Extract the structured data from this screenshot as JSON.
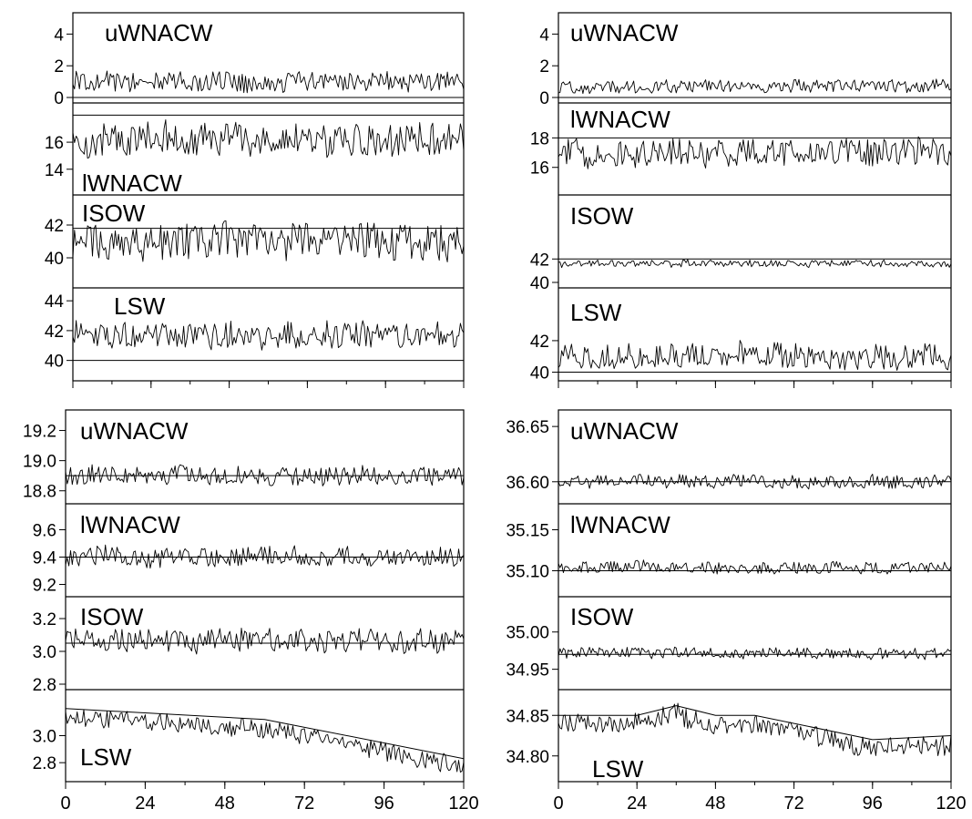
{
  "chart_data": [
    {
      "type": "line",
      "xlim": [
        0,
        120
      ],
      "xticks": [
        "0",
        "24",
        "48",
        "72",
        "96",
        "120"
      ],
      "panels": [
        {
          "label": "uWNACW",
          "yticks": [
            "0",
            "2",
            "4"
          ],
          "ylim": [
            0,
            5
          ],
          "ref": 0,
          "series_mean": 1.0,
          "series_amplitude": 0.6,
          "trend": null
        },
        {
          "label": "lWNACW",
          "yticks": [
            "14",
            "16"
          ],
          "ylim": [
            12.5,
            18.5
          ],
          "ref": 18,
          "series_mean": 16.2,
          "series_amplitude": 1.2,
          "trend": null
        },
        {
          "label": "ISOW",
          "yticks": [
            "40",
            "42"
          ],
          "ylim": [
            38.5,
            43.5
          ],
          "ref": 41.8,
          "series_mean": 41.0,
          "series_amplitude": 1.1,
          "trend": null
        },
        {
          "label": "LSW",
          "yticks": [
            "40",
            "42",
            "44"
          ],
          "ylim": [
            39,
            44.5
          ],
          "ref": 40,
          "series_mean": 41.7,
          "series_amplitude": 0.9,
          "trend": null
        }
      ]
    },
    {
      "type": "line",
      "xlim": [
        0,
        120
      ],
      "xticks": [
        "0",
        "24",
        "48",
        "72",
        "96",
        "120"
      ],
      "panels": [
        {
          "label": "uWNACW",
          "yticks": [
            "0",
            "2",
            "4"
          ],
          "ylim": [
            0,
            5
          ],
          "ref": 0,
          "series_mean": 0.7,
          "series_amplitude": 0.4,
          "trend": null
        },
        {
          "label": "lWNACW",
          "yticks": [
            "16",
            "18"
          ],
          "ylim": [
            14.5,
            20
          ],
          "ref": 18,
          "series_mean": 17.0,
          "series_amplitude": 0.9,
          "trend": null
        },
        {
          "label": "ISOW",
          "yticks": [
            "40",
            "42"
          ],
          "ylim": [
            40,
            47
          ],
          "ref": 42,
          "series_mean": 41.6,
          "series_amplitude": 0.3,
          "trend": null
        },
        {
          "label": "LSW",
          "yticks": [
            "40",
            "42"
          ],
          "ylim": [
            39.8,
            45
          ],
          "ref": 40,
          "series_mean": 41.0,
          "series_amplitude": 0.8,
          "trend": null
        }
      ]
    },
    {
      "type": "line",
      "xlim": [
        0,
        120
      ],
      "xticks": [
        "0",
        "24",
        "48",
        "72",
        "96",
        "120"
      ],
      "panels": [
        {
          "label": "uWNACW",
          "yticks": [
            "18.8",
            "19.0",
            "19.2"
          ],
          "ylim": [
            18.75,
            19.3
          ],
          "ref": 18.9,
          "series_mean": 18.9,
          "series_amplitude": 0.06,
          "trend": null
        },
        {
          "label": "lWNACW",
          "yticks": [
            "9.2",
            "9.4",
            "9.6"
          ],
          "ylim": [
            9.15,
            9.75
          ],
          "ref": 9.4,
          "series_mean": 9.4,
          "series_amplitude": 0.07,
          "trend": null
        },
        {
          "label": "ISOW",
          "yticks": [
            "2.8",
            "3.0",
            "3.2"
          ],
          "ylim": [
            2.8,
            3.3
          ],
          "ref": 3.05,
          "series_mean": 3.07,
          "series_amplitude": 0.07,
          "trend": null
        },
        {
          "label": "LSW",
          "yticks": [
            "2.8",
            "3.0"
          ],
          "ylim": [
            2.7,
            3.3
          ],
          "ref": null,
          "series_mean": 3.0,
          "series_amplitude": 0.07,
          "trend": [
            [
              0,
              3.2
            ],
            [
              60,
              3.12
            ],
            [
              120,
              2.83
            ]
          ]
        }
      ]
    },
    {
      "type": "line",
      "xlim": [
        0,
        120
      ],
      "xticks": [
        "0",
        "24",
        "48",
        "72",
        "96",
        "120"
      ],
      "panels": [
        {
          "label": "uWNACW",
          "yticks": [
            "36.60",
            "36.65"
          ],
          "ylim": [
            36.585,
            36.66
          ],
          "ref": 36.6,
          "series_mean": 36.6,
          "series_amplitude": 0.006,
          "trend": null
        },
        {
          "label": "lWNACW",
          "yticks": [
            "35.10",
            "35.15"
          ],
          "ylim": [
            35.075,
            35.175
          ],
          "ref": 35.1,
          "series_mean": 35.104,
          "series_amplitude": 0.007,
          "trend": null
        },
        {
          "label": "ISOW",
          "yticks": [
            "34.95",
            "35.00"
          ],
          "ylim": [
            34.93,
            35.04
          ],
          "ref": 34.97,
          "series_mean": 34.972,
          "series_amplitude": 0.007,
          "trend": null
        },
        {
          "label": "LSW",
          "yticks": [
            "34.80",
            "34.85"
          ],
          "ylim": [
            34.775,
            34.875
          ],
          "ref": null,
          "series_mean": 34.83,
          "series_amplitude": 0.012,
          "trend": [
            [
              0,
              34.85
            ],
            [
              24,
              34.85
            ],
            [
              36,
              34.862
            ],
            [
              48,
              34.85
            ],
            [
              60,
              34.85
            ],
            [
              96,
              34.82
            ],
            [
              120,
              34.825
            ]
          ]
        }
      ]
    }
  ]
}
